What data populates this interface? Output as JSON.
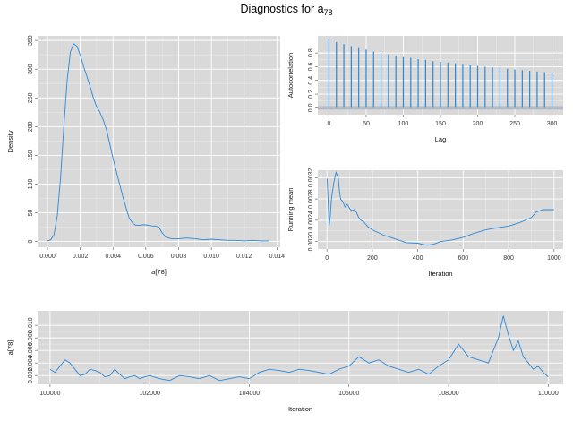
{
  "title": {
    "main": "Diagnostics for a",
    "subscript": "78"
  },
  "colors": {
    "series": "#2b88d8",
    "panel_background": "#d9d9d9",
    "grid": "#ffffff",
    "ci_band": "#aab3bd"
  },
  "chart_data": [
    {
      "id": "density",
      "type": "line",
      "xlabel": "a[78]",
      "ylabel": "Density",
      "xlim": [
        -0.0006,
        0.0142
      ],
      "ylim": [
        -10,
        358
      ],
      "xticks": [
        0.0,
        0.002,
        0.004,
        0.006,
        0.008,
        0.01,
        0.012,
        0.014
      ],
      "xtick_labels": [
        "0.000",
        "0.002",
        "0.004",
        "0.006",
        "0.008",
        "0.010",
        "0.012",
        "0.014"
      ],
      "yticks": [
        0,
        50,
        100,
        150,
        200,
        250,
        300,
        350
      ],
      "ytick_labels": [
        "0",
        "50",
        "100",
        "150",
        "200",
        "250",
        "300",
        "350"
      ],
      "grid": true,
      "series": [
        {
          "x": [
            0.0,
            0.0002,
            0.0004,
            0.0006,
            0.0008,
            0.001,
            0.0012,
            0.0014,
            0.0016,
            0.0018,
            0.002,
            0.0022,
            0.0024,
            0.0026,
            0.0028,
            0.003,
            0.0032,
            0.0034,
            0.0036,
            0.0038,
            0.004,
            0.0042,
            0.0044,
            0.0046,
            0.0048,
            0.005,
            0.0052,
            0.0054,
            0.0056,
            0.0058,
            0.006,
            0.0062,
            0.0064,
            0.0066,
            0.0068,
            0.007,
            0.0072,
            0.0074,
            0.0076,
            0.008,
            0.0085,
            0.009,
            0.0095,
            0.01,
            0.0105,
            0.011,
            0.0115,
            0.012,
            0.0125,
            0.013,
            0.0135
          ],
          "y": [
            1,
            3,
            12,
            45,
            110,
            200,
            280,
            330,
            344,
            340,
            325,
            305,
            288,
            270,
            250,
            235,
            225,
            212,
            195,
            170,
            145,
            122,
            100,
            78,
            58,
            40,
            32,
            28,
            28,
            29,
            29,
            28,
            27,
            27,
            25,
            15,
            8,
            6,
            5,
            5,
            6,
            5,
            3,
            4,
            3,
            2,
            2,
            1,
            2,
            1,
            1
          ]
        }
      ]
    },
    {
      "id": "autocorrelation",
      "type": "bar",
      "xlabel": "Lag",
      "ylabel": "Autocorrelation",
      "xlim": [
        -15,
        315
      ],
      "ylim": [
        -0.1,
        1.05
      ],
      "xticks": [
        0,
        50,
        100,
        150,
        200,
        250,
        300
      ],
      "xtick_labels": [
        "0",
        "50",
        "100",
        "150",
        "200",
        "250",
        "300"
      ],
      "yticks": [
        0.0,
        0.2,
        0.4,
        0.6,
        0.8
      ],
      "ytick_labels": [
        "0.0",
        "0.2",
        "0.4",
        "0.6",
        "0.8"
      ],
      "confidence_band": [
        -0.025,
        0.025
      ],
      "grid": true,
      "series": [
        {
          "x": [
            0,
            10,
            20,
            30,
            40,
            50,
            60,
            70,
            80,
            90,
            100,
            110,
            120,
            130,
            140,
            150,
            160,
            170,
            180,
            190,
            200,
            210,
            220,
            230,
            240,
            250,
            260,
            270,
            280,
            290,
            300
          ],
          "y": [
            1.0,
            0.96,
            0.93,
            0.9,
            0.87,
            0.85,
            0.82,
            0.8,
            0.78,
            0.76,
            0.74,
            0.73,
            0.71,
            0.7,
            0.68,
            0.67,
            0.66,
            0.65,
            0.63,
            0.62,
            0.61,
            0.6,
            0.59,
            0.58,
            0.57,
            0.56,
            0.55,
            0.54,
            0.53,
            0.52,
            0.51
          ]
        }
      ]
    },
    {
      "id": "running-mean",
      "type": "line",
      "xlabel": "Iteration",
      "ylabel": "Running mean",
      "xlim": [
        -40,
        1040
      ],
      "ylim": [
        0.00186,
        0.00334
      ],
      "xticks": [
        0,
        200,
        400,
        600,
        800,
        1000
      ],
      "xtick_labels": [
        "0",
        "200",
        "400",
        "600",
        "800",
        "1000"
      ],
      "yticks": [
        0.002,
        0.0024,
        0.0028,
        0.0032
      ],
      "ytick_labels": [
        "0.0020",
        "0.0024",
        "0.0028",
        "0.0032"
      ],
      "grid": true,
      "series": [
        {
          "x": [
            1,
            10,
            15,
            20,
            30,
            40,
            50,
            55,
            60,
            70,
            80,
            90,
            100,
            110,
            120,
            130,
            140,
            150,
            160,
            180,
            200,
            220,
            250,
            280,
            300,
            350,
            400,
            440,
            470,
            500,
            550,
            600,
            650,
            700,
            750,
            800,
            850,
            900,
            920,
            950,
            980,
            1000
          ],
          "y": [
            0.00318,
            0.0023,
            0.0025,
            0.0028,
            0.0031,
            0.0033,
            0.0032,
            0.00295,
            0.0028,
            0.00275,
            0.00265,
            0.0027,
            0.00262,
            0.00258,
            0.0026,
            0.00255,
            0.00245,
            0.0024,
            0.00238,
            0.00228,
            0.00222,
            0.00218,
            0.00212,
            0.00208,
            0.00205,
            0.00198,
            0.00197,
            0.00193,
            0.00195,
            0.002,
            0.00203,
            0.00208,
            0.00216,
            0.00222,
            0.00226,
            0.00229,
            0.00236,
            0.00245,
            0.00255,
            0.0026,
            0.0026,
            0.0026
          ]
        }
      ]
    },
    {
      "id": "trace",
      "type": "line",
      "xlabel": "Iteration",
      "ylabel": "a[78]",
      "xlim": [
        99750,
        110300
      ],
      "ylim": [
        0.0006,
        0.0123
      ],
      "xticks": [
        100000,
        102000,
        104000,
        106000,
        108000,
        110000
      ],
      "xtick_labels": [
        "100000",
        "102000",
        "104000",
        "106000",
        "108000",
        "110000"
      ],
      "yticks": [
        0.002,
        0.004,
        0.006,
        0.008,
        0.01
      ],
      "ytick_labels": [
        "0.002",
        "0.004",
        "0.006",
        "0.008",
        "0.010"
      ],
      "grid": true,
      "series": [
        {
          "x": [
            100000,
            100100,
            100200,
            100300,
            100400,
            100500,
            100600,
            100700,
            100800,
            100900,
            101000,
            101100,
            101200,
            101300,
            101400,
            101500,
            101600,
            101700,
            101800,
            101900,
            102000,
            102200,
            102400,
            102600,
            102800,
            103000,
            103200,
            103400,
            103600,
            103800,
            104000,
            104200,
            104400,
            104600,
            104800,
            105000,
            105200,
            105400,
            105600,
            105800,
            106000,
            106200,
            106400,
            106600,
            106800,
            107000,
            107200,
            107400,
            107600,
            107800,
            108000,
            108200,
            108400,
            108600,
            108800,
            109000,
            109100,
            109200,
            109300,
            109400,
            109500,
            109600,
            109700,
            109800,
            109900,
            110000
          ],
          "y": [
            0.003,
            0.0025,
            0.0035,
            0.0045,
            0.004,
            0.003,
            0.002,
            0.0022,
            0.003,
            0.0028,
            0.0025,
            0.0018,
            0.002,
            0.003,
            0.0022,
            0.0015,
            0.0018,
            0.002,
            0.0015,
            0.0018,
            0.002,
            0.0015,
            0.0012,
            0.002,
            0.0018,
            0.0015,
            0.002,
            0.0012,
            0.0015,
            0.0018,
            0.0015,
            0.0025,
            0.003,
            0.0028,
            0.0025,
            0.003,
            0.0028,
            0.0025,
            0.0022,
            0.003,
            0.0035,
            0.005,
            0.004,
            0.0045,
            0.0035,
            0.003,
            0.0025,
            0.003,
            0.0022,
            0.0035,
            0.0045,
            0.007,
            0.005,
            0.0045,
            0.004,
            0.008,
            0.0115,
            0.0085,
            0.006,
            0.0075,
            0.005,
            0.004,
            0.003,
            0.0035,
            0.0025,
            0.0018
          ]
        }
      ]
    }
  ]
}
